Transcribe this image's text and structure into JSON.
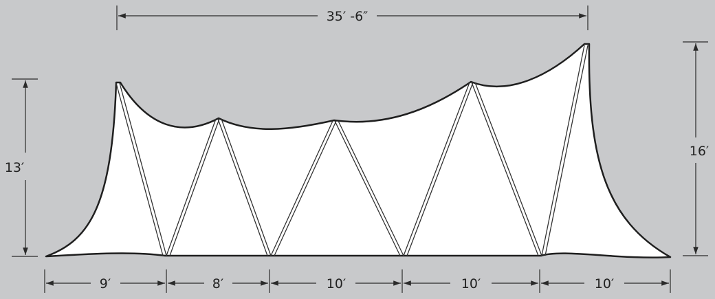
{
  "colors": {
    "background": "#c8c9cb",
    "fabric": "#ffffff",
    "outline": "#1f1f1f",
    "dimension_line": "#2a2a2a"
  },
  "dimensions": {
    "overall_width": "35′ -6″",
    "left_height": "13′",
    "right_height": "16′",
    "segments": [
      "9′",
      "8′",
      "10′",
      "10′",
      "10′"
    ]
  }
}
